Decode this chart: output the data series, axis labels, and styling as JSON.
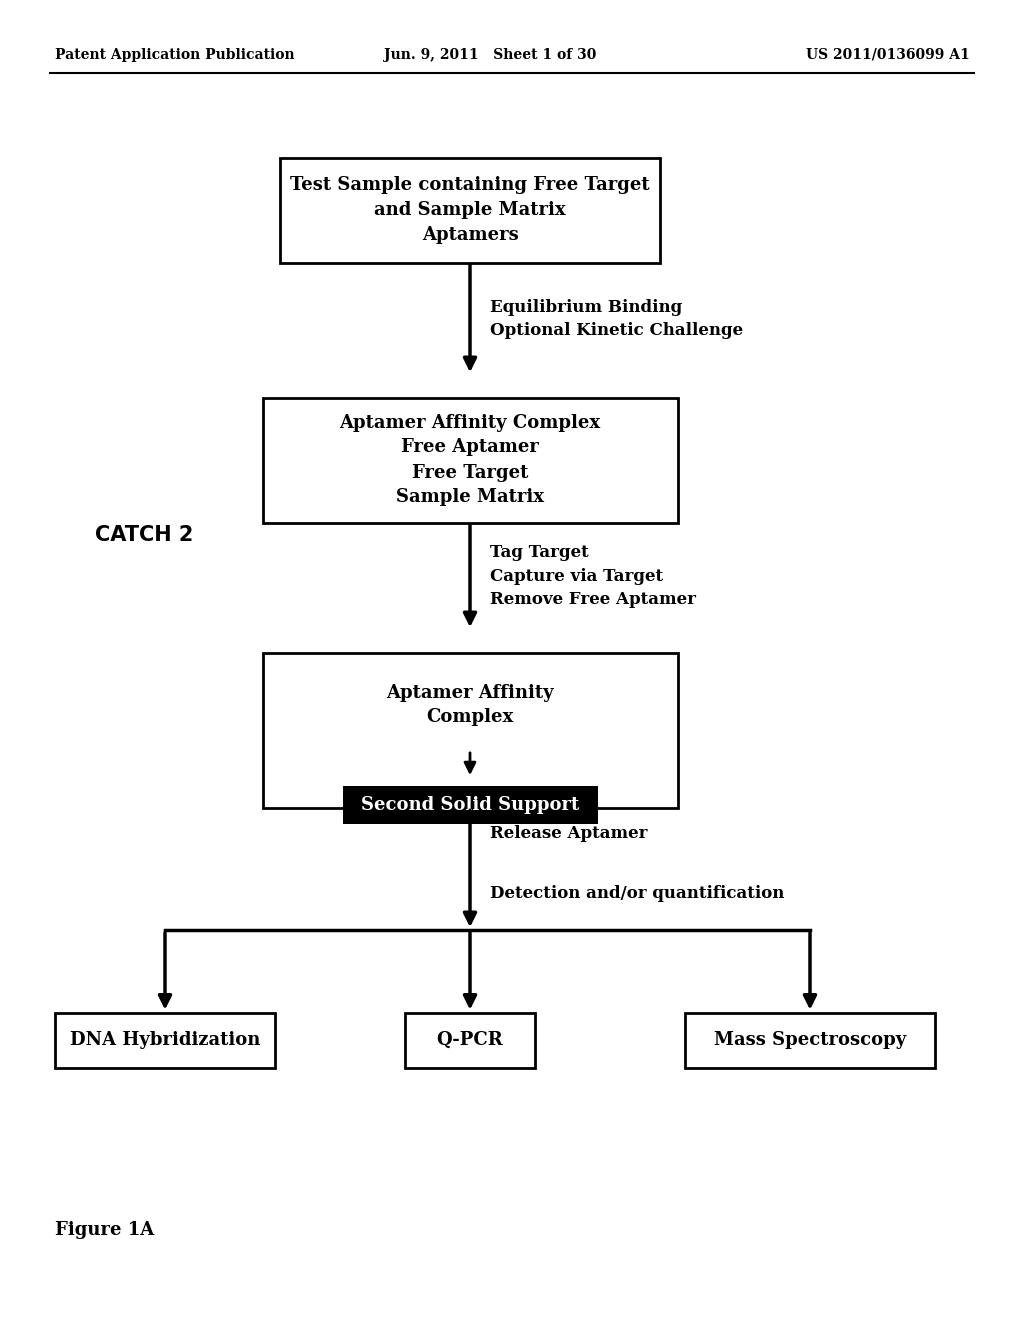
{
  "bg_color": "#ffffff",
  "header_left": "Patent Application Publication",
  "header_mid": "Jun. 9, 2011   Sheet 1 of 30",
  "header_right": "US 2011/0136099 A1",
  "footer_label": "Figure 1A",
  "catch2_label": "CATCH 2",
  "box1_text": "Test Sample containing Free Target\nand Sample Matrix\nAptamers",
  "box2_text": "Aptamer Affinity Complex\nFree Aptamer\nFree Target\nSample Matrix",
  "box3_text": "Aptamer Affinity\nComplex",
  "box4_solid_text": "Second Solid Support",
  "box_dna": "DNA Hybridization",
  "box_qpcr": "Q-PCR",
  "box_mass": "Mass Spectroscopy",
  "arrow1_label": "Equilibrium Binding\nOptional Kinetic Challenge",
  "arrow2_label": "Tag Target\nCapture via Target\nRemove Free Aptamer",
  "arrow3_label": "Release Aptamer\n\nDetection and/or quantification",
  "box_color": "#ffffff",
  "box_edge_color": "#000000",
  "solid_support_bg": "#000000",
  "solid_support_fg": "#ffffff",
  "text_color": "#000000",
  "fig_width": 10.24,
  "fig_height": 13.2,
  "dpi": 100
}
